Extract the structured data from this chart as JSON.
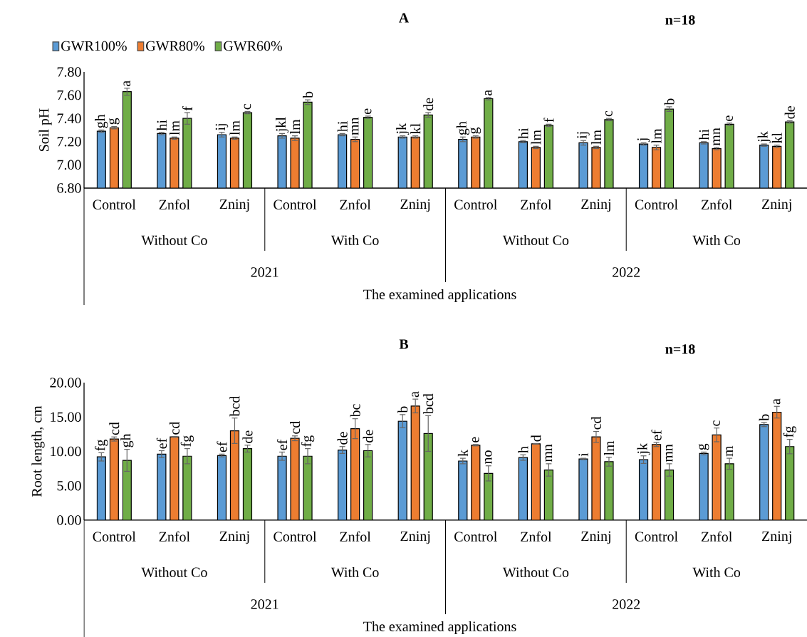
{
  "chart_data": [
    {
      "type": "bar",
      "title": "A",
      "ylabel": "Soil pH",
      "xlabel": "The examined applications",
      "categories": [
        "Control",
        "Znfol",
        "Zninj",
        "Control",
        "Znfol",
        "Zninj",
        "Control",
        "Znfol",
        "Zninj",
        "Control",
        "Znfol",
        "Zninj"
      ],
      "annotations": [
        "Without Co",
        "With Co",
        "Without Co",
        "With Co",
        "2021",
        "2022",
        "n=18"
      ],
      "ylim": [
        6.8,
        7.8
      ],
      "yticks": [
        {
          "value": 6.8,
          "label": "6.80"
        },
        {
          "value": 7.0,
          "label": "7.00"
        },
        {
          "value": 7.2,
          "label": "7.20"
        },
        {
          "value": 7.4,
          "label": "7.40"
        },
        {
          "value": 7.6,
          "label": "7.60"
        },
        {
          "value": 7.8,
          "label": "7.80"
        }
      ],
      "legend": "top left",
      "series": [
        {
          "name": "GWR100%",
          "color": "#5b9bd5",
          "values": [
            7.29,
            7.27,
            7.26,
            7.25,
            7.26,
            7.24,
            7.22,
            7.2,
            7.19,
            7.18,
            7.19,
            7.17
          ],
          "errors": [
            0.01,
            0.01,
            0.02,
            0.02,
            0.01,
            0.01,
            0.02,
            0.01,
            0.02,
            0.01,
            0.01,
            0.01
          ],
          "value_labels": [
            "gh",
            "hi",
            "ij",
            "jkl",
            "hi",
            "jk",
            "gh",
            "hi",
            "ij",
            "j",
            "hi",
            "jk"
          ]
        },
        {
          "name": "GWR80%",
          "color": "#ed7d31",
          "values": [
            7.32,
            7.23,
            7.23,
            7.23,
            7.22,
            7.24,
            7.24,
            7.15,
            7.15,
            7.15,
            7.14,
            7.16
          ],
          "errors": [
            0.01,
            0.01,
            0.01,
            0.02,
            0.02,
            0.01,
            0.01,
            0.01,
            0.01,
            0.02,
            0.01,
            0.01
          ],
          "value_labels": [
            "g",
            "lm",
            "lm",
            "lm",
            "mn",
            "kl",
            "g",
            "lm",
            "lm",
            "lm",
            "mn",
            "kl"
          ]
        },
        {
          "name": "GWR60%",
          "color": "#70ad47",
          "values": [
            7.63,
            7.4,
            7.45,
            7.54,
            7.41,
            7.43,
            7.57,
            7.34,
            7.39,
            7.48,
            7.35,
            7.37
          ],
          "errors": [
            0.03,
            0.05,
            0.01,
            0.02,
            0.01,
            0.02,
            0.01,
            0.01,
            0.01,
            0.02,
            0.01,
            0.01
          ],
          "value_labels": [
            "a",
            "f",
            "c",
            "b",
            "e",
            "de",
            "a",
            "f",
            "c",
            "b",
            "e",
            "de"
          ]
        }
      ]
    },
    {
      "type": "bar",
      "title": "B",
      "ylabel": "Root length, cm",
      "xlabel": "The examined applications",
      "categories": [
        "Control",
        "Znfol",
        "Zninj",
        "Control",
        "Znfol",
        "Zninj",
        "Control",
        "Znfol",
        "Zninj",
        "Control",
        "Znfol",
        "Zninj"
      ],
      "annotations": [
        "Without Co",
        "With Co",
        "Without Co",
        "With Co",
        "2021",
        "2022",
        "n=18"
      ],
      "ylim": [
        0,
        20
      ],
      "yticks": [
        {
          "value": 0,
          "label": "0.00"
        },
        {
          "value": 5,
          "label": "5.00"
        },
        {
          "value": 10,
          "label": "10.00"
        },
        {
          "value": 15,
          "label": "15.00"
        },
        {
          "value": 20,
          "label": "20.00"
        }
      ],
      "series": [
        {
          "color": "#5b9bd5",
          "values": [
            9.2,
            9.6,
            9.4,
            9.3,
            10.2,
            14.4,
            8.6,
            9.1,
            8.9,
            8.8,
            9.7,
            13.9
          ],
          "errors": [
            0.6,
            0.5,
            0.2,
            0.6,
            0.5,
            0.95,
            0.4,
            0.4,
            0.1,
            0.55,
            0.2,
            0.3
          ],
          "value_labels": [
            "fg",
            "ef",
            "ef",
            "ef",
            "de",
            "b",
            "k",
            "h",
            "i",
            "jk",
            "g",
            "b"
          ]
        },
        {
          "color": "#ed7d31",
          "values": [
            11.8,
            12.1,
            13.0,
            11.9,
            13.3,
            16.6,
            10.9,
            11.1,
            12.1,
            11.0,
            12.4,
            15.7
          ],
          "errors": [
            0.3,
            0.05,
            1.85,
            0.35,
            1.45,
            1.0,
            0.1,
            0.05,
            0.8,
            0.3,
            1.0,
            0.85
          ],
          "value_labels": [
            "cd",
            "cd",
            "bcd",
            "cd",
            "bc",
            "a",
            "e",
            "d",
            "cd",
            "ef",
            "c",
            "a"
          ]
        },
        {
          "color": "#70ad47",
          "values": [
            8.7,
            9.3,
            10.4,
            9.3,
            10.1,
            12.6,
            6.8,
            7.3,
            8.5,
            7.3,
            8.2,
            10.7
          ],
          "errors": [
            1.6,
            1.1,
            0.5,
            1.1,
            0.9,
            2.6,
            1.1,
            0.9,
            0.65,
            0.9,
            0.8,
            1.05
          ],
          "value_labels": [
            "gh",
            "fg",
            "de",
            "fg",
            "de",
            "bcd",
            "no",
            "mn",
            "lm",
            "mn",
            "m",
            "fg"
          ]
        }
      ]
    }
  ]
}
